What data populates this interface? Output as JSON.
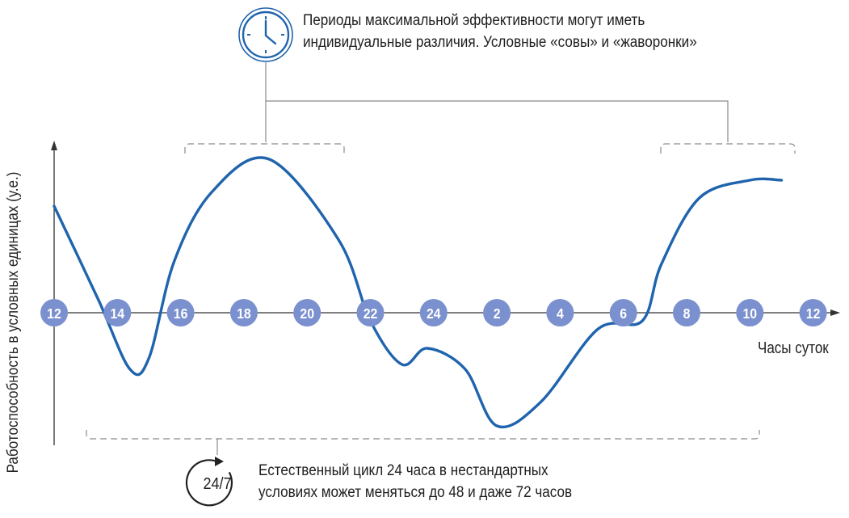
{
  "texts": {
    "top_note_line1": "Периоды максимальной эффективности могут иметь",
    "top_note_line2": "индивидуальные различия. Условные «совы» и «жаворонки»",
    "bottom_note_line1": "Естественный цикл 24 часа в нестандартных",
    "bottom_note_line2": "условиях может меняться до 48 и даже 72 часов",
    "badge_24_7": "24/7"
  },
  "colors": {
    "accent": "#1f64ad",
    "marker": "#7b90cf",
    "axis": "#333333",
    "bracket": "#8a8a8a"
  },
  "icons": [
    "clock-icon",
    "cycle-arrow-icon"
  ],
  "chart_data": {
    "type": "line",
    "xlabel": "Часы суток",
    "ylabel": "Работоспособность в условных единицах (у.е.)",
    "x_ticks": [
      "12",
      "14",
      "16",
      "18",
      "20",
      "22",
      "24",
      "2",
      "4",
      "6",
      "8",
      "10",
      "12"
    ],
    "y_range": [
      -1,
      1
    ],
    "grid": false,
    "series": [
      {
        "x": [
          0,
          0.7,
          1.2,
          1.5,
          1.9,
          2.5,
          3.4,
          4.5,
          5.0,
          5.5,
          5.9,
          6.5,
          7.0,
          7.7,
          8.6,
          9.3,
          9.6,
          10.2,
          11.0,
          11.5
        ],
        "values": [
          0.66,
          0.08,
          -0.35,
          -0.28,
          0.32,
          0.75,
          0.95,
          0.45,
          -0.05,
          -0.32,
          -0.22,
          -0.35,
          -0.7,
          -0.55,
          -0.1,
          -0.05,
          0.3,
          0.71,
          0.82,
          0.82
        ]
      }
    ],
    "annotations": [
      "Периоды максимальной эффективности могут иметь индивидуальные различия. Условные «совы» и «жаворонки»",
      "Естественный цикл 24 часа в нестандартных условиях может меняться до 48 и даже 72 часов"
    ]
  }
}
